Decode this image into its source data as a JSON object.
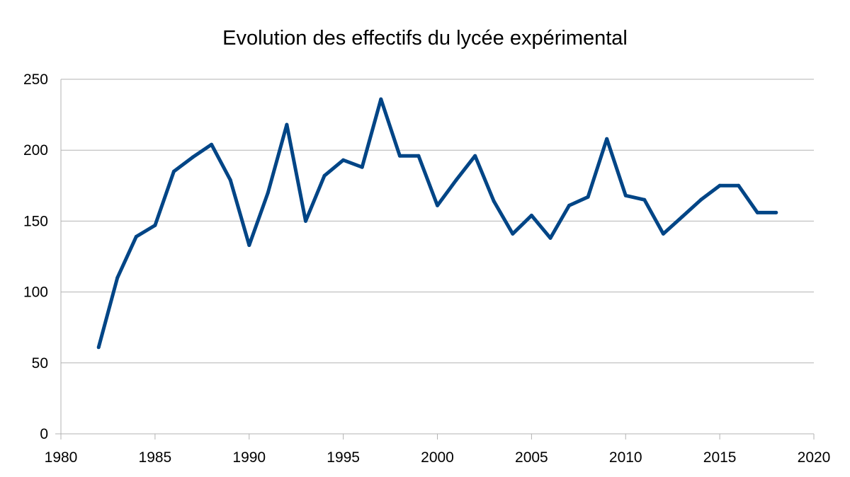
{
  "chart_data": {
    "type": "line",
    "title": "Evolution des effectifs du lycée expérimental",
    "xlabel": "",
    "ylabel": "",
    "xlim": [
      1980,
      2020
    ],
    "ylim": [
      0,
      250
    ],
    "x_ticks": [
      1980,
      1985,
      1990,
      1995,
      2000,
      2005,
      2010,
      2015,
      2020
    ],
    "y_ticks": [
      0,
      50,
      100,
      150,
      200,
      250
    ],
    "grid": "horizontal",
    "legend": "none",
    "series": [
      {
        "color": "#004586",
        "x": [
          1982,
          1983,
          1984,
          1985,
          1986,
          1987,
          1988,
          1989,
          1990,
          1991,
          1992,
          1993,
          1994,
          1995,
          1996,
          1997,
          1998,
          1999,
          2000,
          2001,
          2002,
          2003,
          2004,
          2005,
          2006,
          2007,
          2008,
          2009,
          2010,
          2011,
          2012,
          2013,
          2014,
          2015,
          2016,
          2017,
          2018
        ],
        "values": [
          61,
          110,
          139,
          147,
          185,
          195,
          204,
          179,
          133,
          170,
          218,
          150,
          182,
          193,
          188,
          236,
          196,
          196,
          161,
          179,
          196,
          164,
          141,
          154,
          138,
          161,
          167,
          208,
          168,
          165,
          141,
          153,
          165,
          175,
          175,
          156,
          156
        ]
      }
    ]
  }
}
